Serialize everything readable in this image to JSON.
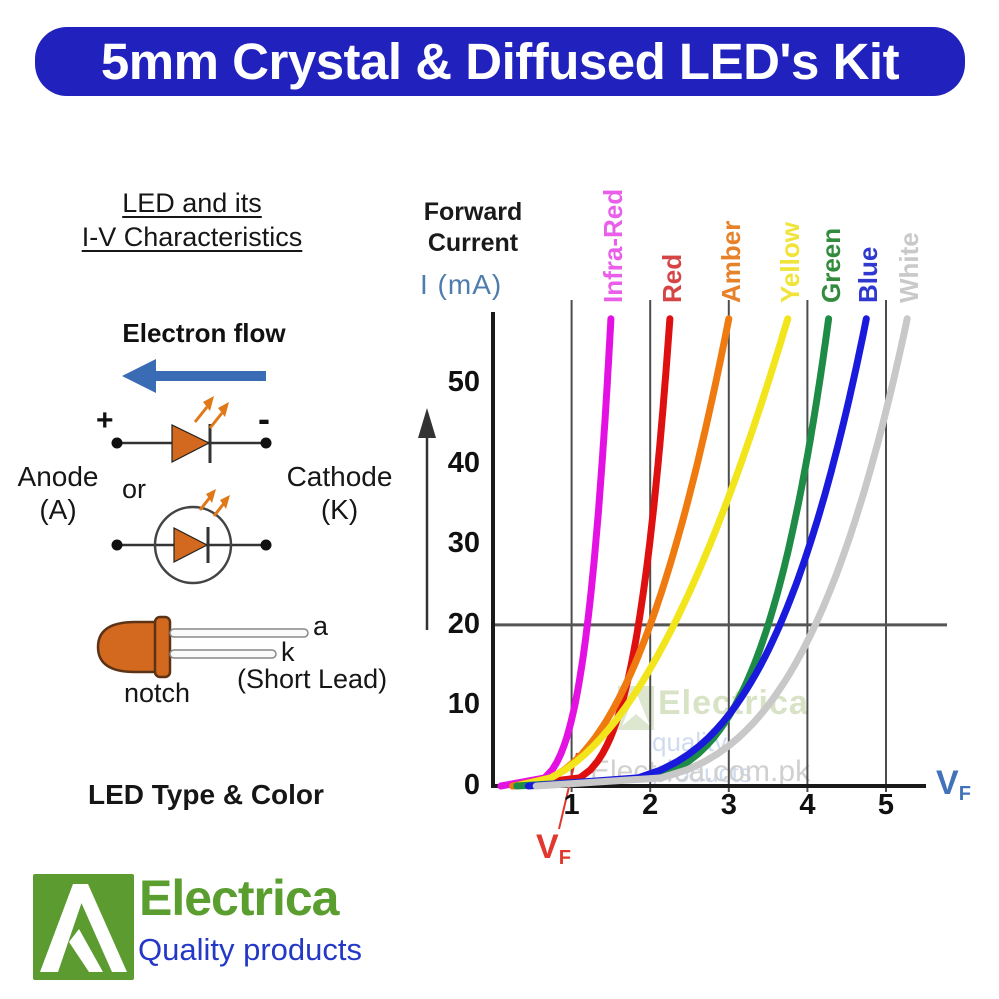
{
  "banner": {
    "title": "5mm Crystal & Diffused LED's Kit",
    "bg_color": "#2121BE",
    "text_color": "#FFFFFF"
  },
  "left_panel": {
    "heading_line1": "LED and its",
    "heading_line2": "I-V Characteristics",
    "electron_flow_label": "Electron flow",
    "plus_label": "+",
    "minus_label": "-",
    "anode_line1": "Anode",
    "anode_line2": "(A)",
    "or_label": "or",
    "cathode_line1": "Cathode",
    "cathode_line2": "(K)",
    "lead_a_label": "a",
    "lead_k_label": "k",
    "short_lead_label": "(Short Lead)",
    "notch_label": "notch",
    "type_color_label": "LED Type & Color",
    "arrow_color": "#3A6CB5",
    "led_body_color": "#D2691E"
  },
  "chart": {
    "forward_line1": "Forward",
    "forward_line2": "Current",
    "current_axis_label": "I (mA)",
    "voltage_axis_main": "V",
    "voltage_axis_sub": "F",
    "vf_note_main": "V",
    "vf_note_sub": "F",
    "watermark_line1": "Electrica",
    "watermark_line2": "quality products",
    "watermark_line3": "Electrica.com.pk"
  },
  "chart_data": {
    "type": "line",
    "title": "LED and its I-V Characteristics",
    "xlabel": "VF — forward voltage (V)",
    "ylabel": "I (mA) — forward current",
    "xlim": [
      0,
      5.6
    ],
    "ylim": [
      0,
      58
    ],
    "x_ticks": [
      1,
      2,
      3,
      4,
      5
    ],
    "y_ticks": [
      0,
      10,
      20,
      30,
      40,
      50
    ],
    "reference_current_mA": 20,
    "grid": "vertical gridlines at each x tick; horizontal reference line at 20 mA",
    "legend_position": "rotated color names above each curve top",
    "annotation": "red VF marker pointing to x-axis near 1 V",
    "series": [
      {
        "name": "Infra-Red",
        "color": "#E312E3",
        "label_color": "#E95FE9",
        "vf_turn_on": 0.1,
        "vf_at_20mA": 1.2,
        "vf_at_58mA": 1.5
      },
      {
        "name": "Red",
        "color": "#DE1010",
        "label_color": "#D64545",
        "vf_turn_on": 0.25,
        "vf_at_20mA": 1.85,
        "vf_at_58mA": 2.25
      },
      {
        "name": "Amber",
        "color": "#EF7B10",
        "label_color": "#E8822A",
        "vf_turn_on": 0.25,
        "vf_at_20mA": 2.0,
        "vf_at_58mA": 3.0
      },
      {
        "name": "Yellow",
        "color": "#F2E51C",
        "label_color": "#EFE437",
        "vf_turn_on": 0.3,
        "vf_at_20mA": 2.3,
        "vf_at_58mA": 3.75
      },
      {
        "name": "Green",
        "color": "#1E8C46",
        "label_color": "#338C3E",
        "vf_turn_on": 0.3,
        "vf_at_20mA": 3.5,
        "vf_at_58mA": 4.27
      },
      {
        "name": "Blue",
        "color": "#1A1ADD",
        "label_color": "#3039CF",
        "vf_turn_on": 0.45,
        "vf_at_20mA": 3.65,
        "vf_at_58mA": 4.75
      },
      {
        "name": "White",
        "color": "#C8C8C8",
        "label_color": "#C9C9C9",
        "vf_turn_on": 0.55,
        "vf_at_20mA": 4.1,
        "vf_at_58mA": 5.27
      }
    ]
  },
  "footer": {
    "brand": "Electrica",
    "tagline": "Quality products",
    "brand_color": "#5A9E2F",
    "tagline_color": "#2438C8",
    "logo_bg": "#5B9B2F"
  }
}
